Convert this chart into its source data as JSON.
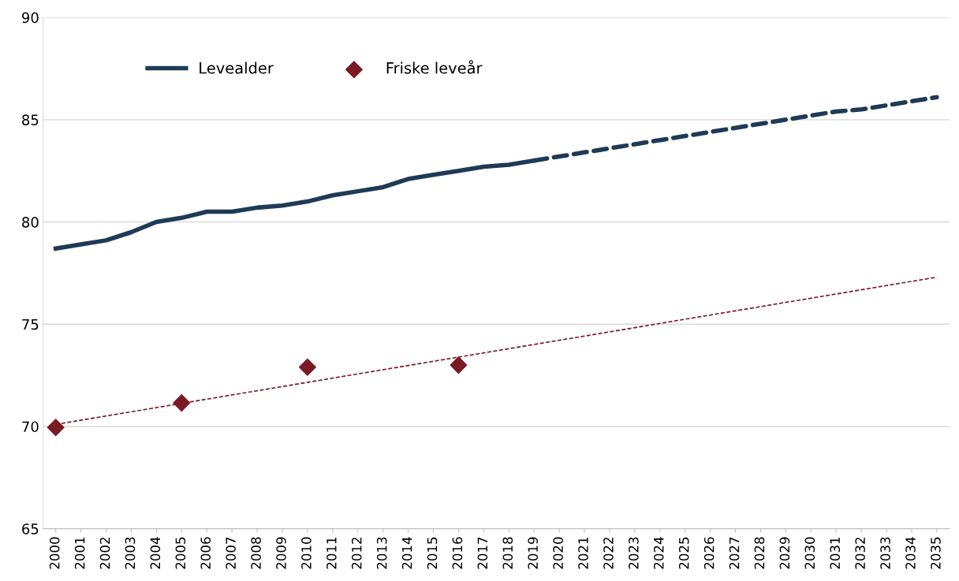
{
  "chart_data": {
    "type": "line",
    "categories": [
      "2000",
      "2001",
      "2002",
      "2003",
      "2004",
      "2005",
      "2006",
      "2007",
      "2008",
      "2009",
      "2010",
      "2011",
      "2012",
      "2013",
      "2014",
      "2015",
      "2016",
      "2017",
      "2018",
      "2019",
      "2020",
      "2021",
      "2022",
      "2023",
      "2024",
      "2025",
      "2026",
      "2027",
      "2028",
      "2029",
      "2030",
      "2031",
      "2032",
      "2033",
      "2034",
      "2035"
    ],
    "series": [
      {
        "name": "Levealder",
        "color": "#1f3a56",
        "line_style": "solid",
        "values": [
          78.7,
          78.9,
          79.1,
          79.5,
          80.0,
          80.2,
          80.5,
          80.5,
          80.7,
          80.8,
          81.0,
          81.3,
          81.5,
          81.7,
          82.1,
          82.3,
          82.5,
          82.7,
          82.8,
          83.0,
          null,
          null,
          null,
          null,
          null,
          null,
          null,
          null,
          null,
          null,
          null,
          null,
          null,
          null,
          null,
          null
        ]
      },
      {
        "color": "#1f3a56",
        "line_style": "dashed",
        "values": [
          null,
          null,
          null,
          null,
          null,
          null,
          null,
          null,
          null,
          null,
          null,
          null,
          null,
          null,
          null,
          null,
          null,
          null,
          null,
          83.0,
          83.2,
          83.4,
          83.6,
          83.8,
          84.0,
          84.2,
          84.4,
          84.6,
          84.8,
          85.0,
          85.2,
          85.4,
          85.5,
          85.7,
          85.9,
          86.1
        ]
      },
      {
        "color": "#7b1a22",
        "line_style": "dotted",
        "values": [
          70.1,
          null,
          null,
          null,
          null,
          null,
          null,
          null,
          null,
          null,
          null,
          null,
          null,
          null,
          null,
          null,
          null,
          null,
          null,
          null,
          null,
          null,
          null,
          null,
          null,
          null,
          null,
          null,
          null,
          null,
          null,
          null,
          null,
          null,
          null,
          77.3
        ]
      },
      {
        "name": "Friske leveår",
        "type": "scatter",
        "color": "#7b1a22",
        "marker": "diamond",
        "values": [
          69.95,
          null,
          null,
          null,
          null,
          71.15,
          null,
          null,
          null,
          null,
          72.9,
          null,
          null,
          null,
          null,
          null,
          73.0,
          null,
          null,
          null,
          null,
          null,
          null,
          null,
          null,
          null,
          null,
          null,
          null,
          null,
          null,
          null,
          null,
          null,
          null,
          null
        ]
      }
    ],
    "ylim": [
      65,
      90
    ],
    "yticks": [
      65,
      70,
      75,
      80,
      85,
      90
    ],
    "grid": "y",
    "legend": "top left"
  }
}
